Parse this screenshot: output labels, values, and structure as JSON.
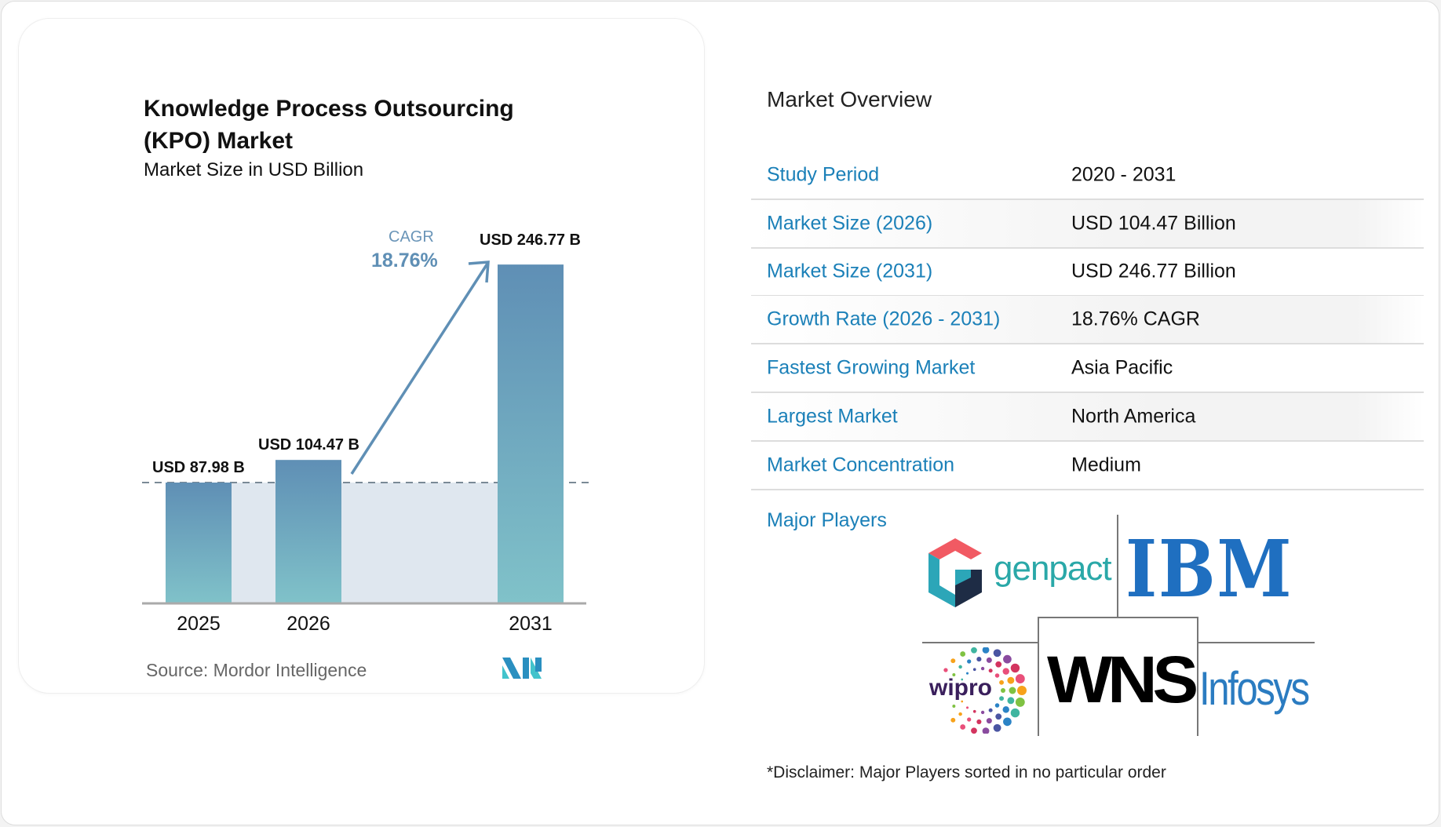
{
  "chart_data": {
    "type": "bar",
    "title": "Knowledge Process Outsourcing (KPO) Market",
    "subtitle": "Market Size in USD Billion",
    "categories": [
      "2025",
      "2026",
      "2031"
    ],
    "values": [
      87.98,
      104.47,
      246.77
    ],
    "value_labels": [
      "USD 87.98 B",
      "USD 104.47 B",
      "USD 246.77 B"
    ],
    "cagr_label": "CAGR",
    "cagr_value": "18.76%",
    "xlabel": "",
    "ylabel": "",
    "ylim": [
      0,
      260
    ],
    "source": "Source:  Mordor Intelligence",
    "bar_color_top": "#5f8fb5",
    "bar_color_bottom": "#80c2c9"
  },
  "overview": {
    "title": "Market Overview",
    "rows": [
      {
        "label": "Study Period",
        "value": "2020 - 2031"
      },
      {
        "label": "Market Size (2026)",
        "value": "USD 104.47 Billion"
      },
      {
        "label": "Market Size (2031)",
        "value": "USD 246.77 Billion"
      },
      {
        "label": "Growth Rate (2026 - 2031)",
        "value": "18.76% CAGR"
      },
      {
        "label": "Fastest Growing Market",
        "value": "Asia Pacific"
      },
      {
        "label": "Largest Market",
        "value": "North America"
      },
      {
        "label": "Market Concentration",
        "value": "Medium"
      }
    ],
    "major_players_label": "Major Players",
    "players": [
      "genpact",
      "IBM",
      "wipro",
      "WNS",
      "Infosys"
    ],
    "disclaimer": "*Disclaimer: Major Players sorted in no particular order"
  },
  "colors": {
    "label_blue": "#1b80b8",
    "arrow": "#5f8fb5"
  }
}
